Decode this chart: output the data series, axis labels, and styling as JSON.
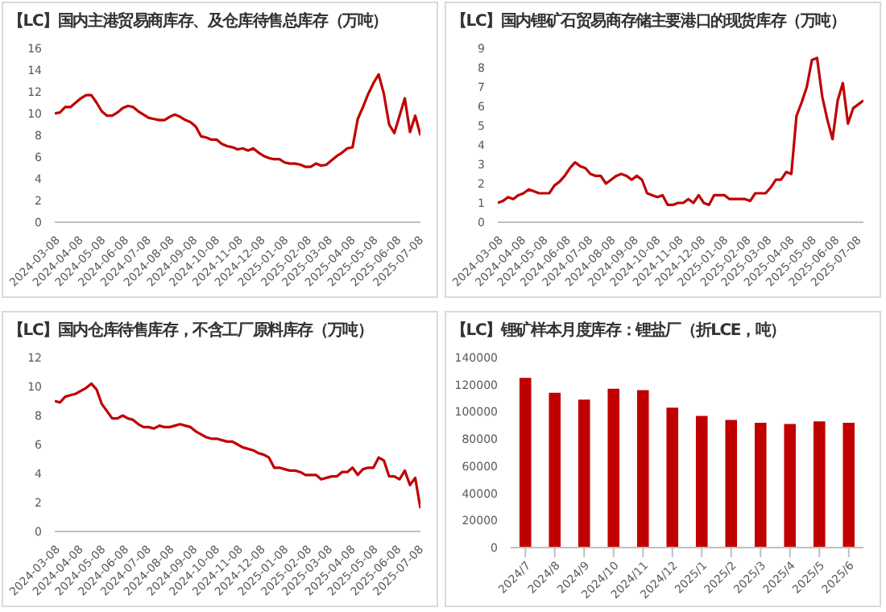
{
  "chart_data": [
    {
      "type": "line",
      "title": "【LC】国内主港贸易商库存、及仓库待售总库存（万吨）",
      "color": "#c00000",
      "x": [
        "2024-03-08",
        "2024-03-15",
        "2024-03-22",
        "2024-03-29",
        "2024-04-05",
        "2024-04-12",
        "2024-04-19",
        "2024-04-26",
        "2024-05-03",
        "2024-05-10",
        "2024-05-17",
        "2024-05-24",
        "2024-05-31",
        "2024-06-07",
        "2024-06-14",
        "2024-06-21",
        "2024-06-28",
        "2024-07-05",
        "2024-07-12",
        "2024-07-19",
        "2024-07-26",
        "2024-08-02",
        "2024-08-09",
        "2024-08-16",
        "2024-08-23",
        "2024-08-30",
        "2024-09-06",
        "2024-09-13",
        "2024-09-20",
        "2024-09-27",
        "2024-10-04",
        "2024-10-11",
        "2024-10-18",
        "2024-10-25",
        "2024-11-01",
        "2024-11-08",
        "2024-11-15",
        "2024-11-22",
        "2024-11-29",
        "2024-12-06",
        "2024-12-13",
        "2024-12-20",
        "2024-12-27",
        "2025-01-03",
        "2025-01-10",
        "2025-01-17",
        "2025-01-24",
        "2025-01-31",
        "2025-02-07",
        "2025-02-14",
        "2025-02-21",
        "2025-02-28",
        "2025-03-07",
        "2025-03-14",
        "2025-03-21",
        "2025-03-28",
        "2025-04-04",
        "2025-04-11",
        "2025-04-18",
        "2025-04-25",
        "2025-05-02",
        "2025-05-09",
        "2025-05-16",
        "2025-05-23",
        "2025-05-30",
        "2025-06-06",
        "2025-06-13",
        "2025-06-20",
        "2025-06-27",
        "2025-07-04",
        "2025-07-11"
      ],
      "values": [
        10.0,
        10.1,
        10.6,
        10.6,
        11.0,
        11.4,
        11.7,
        11.7,
        11.0,
        10.2,
        9.8,
        9.8,
        10.1,
        10.5,
        10.7,
        10.6,
        10.2,
        9.9,
        9.6,
        9.5,
        9.4,
        9.4,
        9.7,
        9.9,
        9.7,
        9.4,
        9.2,
        8.8,
        7.9,
        7.8,
        7.6,
        7.6,
        7.2,
        7.0,
        6.9,
        6.7,
        6.8,
        6.6,
        6.8,
        6.4,
        6.1,
        5.9,
        5.8,
        5.8,
        5.5,
        5.4,
        5.4,
        5.3,
        5.1,
        5.1,
        5.4,
        5.2,
        5.3,
        5.7,
        6.1,
        6.4,
        6.8,
        6.9,
        9.5,
        10.6,
        11.8,
        12.8,
        13.6,
        11.8,
        9.0,
        8.2,
        9.8,
        11.4,
        8.3,
        9.8,
        8.0
      ],
      "xlim": [
        "2024-03-08",
        "2025-07-11"
      ],
      "xticks": [
        "2024-03-08",
        "2024-04-08",
        "2024-05-08",
        "2024-06-08",
        "2024-07-08",
        "2024-08-08",
        "2024-09-08",
        "2024-10-08",
        "2024-11-08",
        "2024-12-08",
        "2025-01-08",
        "2025-02-08",
        "2025-03-08",
        "2025-04-08",
        "2025-05-08",
        "2025-06-08",
        "2025-07-08"
      ],
      "ylim": [
        0,
        16
      ],
      "yticks": [
        0,
        2,
        4,
        6,
        8,
        10,
        12,
        14,
        16
      ]
    },
    {
      "type": "line",
      "title": "【LC】国内锂矿石贸易商存储主要港口的现货库存（万吨）",
      "color": "#c00000",
      "x": [
        "2024-03-08",
        "2024-03-15",
        "2024-03-22",
        "2024-03-29",
        "2024-04-05",
        "2024-04-12",
        "2024-04-19",
        "2024-04-26",
        "2024-05-03",
        "2024-05-10",
        "2024-05-17",
        "2024-05-24",
        "2024-05-31",
        "2024-06-07",
        "2024-06-14",
        "2024-06-21",
        "2024-06-28",
        "2024-07-05",
        "2024-07-12",
        "2024-07-19",
        "2024-07-26",
        "2024-08-02",
        "2024-08-09",
        "2024-08-16",
        "2024-08-23",
        "2024-08-30",
        "2024-09-06",
        "2024-09-13",
        "2024-09-20",
        "2024-09-27",
        "2024-10-04",
        "2024-10-11",
        "2024-10-18",
        "2024-10-25",
        "2024-11-01",
        "2024-11-08",
        "2024-11-15",
        "2024-11-22",
        "2024-11-29",
        "2024-12-06",
        "2024-12-13",
        "2024-12-20",
        "2024-12-27",
        "2025-01-03",
        "2025-01-10",
        "2025-01-17",
        "2025-01-24",
        "2025-01-31",
        "2025-02-07",
        "2025-02-14",
        "2025-02-21",
        "2025-02-28",
        "2025-03-07",
        "2025-03-14",
        "2025-03-21",
        "2025-03-28",
        "2025-04-04",
        "2025-04-11",
        "2025-04-18",
        "2025-04-25",
        "2025-05-02",
        "2025-05-09",
        "2025-05-16",
        "2025-05-23",
        "2025-05-30",
        "2025-06-06",
        "2025-06-13",
        "2025-06-20",
        "2025-06-27",
        "2025-07-04",
        "2025-07-11",
        "2025-07-18"
      ],
      "values": [
        1.0,
        1.1,
        1.3,
        1.2,
        1.4,
        1.5,
        1.7,
        1.6,
        1.5,
        1.5,
        1.5,
        1.9,
        2.1,
        2.4,
        2.8,
        3.1,
        2.9,
        2.8,
        2.5,
        2.4,
        2.4,
        2.0,
        2.2,
        2.4,
        2.5,
        2.4,
        2.2,
        2.4,
        2.2,
        1.5,
        1.4,
        1.3,
        1.4,
        0.9,
        0.9,
        1.0,
        1.0,
        1.2,
        1.0,
        1.4,
        1.0,
        0.9,
        1.4,
        1.4,
        1.4,
        1.2,
        1.2,
        1.2,
        1.2,
        1.1,
        1.5,
        1.5,
        1.5,
        1.8,
        2.2,
        2.2,
        2.6,
        2.5,
        5.5,
        6.2,
        7.0,
        8.4,
        8.5,
        6.5,
        5.3,
        4.3,
        6.3,
        7.2,
        5.1,
        5.9,
        6.1,
        6.3
      ],
      "xlim": [
        "2024-03-08",
        "2025-07-18"
      ],
      "xticks": [
        "2024-03-08",
        "2024-04-08",
        "2024-05-08",
        "2024-06-08",
        "2024-07-08",
        "2024-08-08",
        "2024-09-08",
        "2024-10-08",
        "2024-11-08",
        "2024-12-08",
        "2025-01-08",
        "2025-02-08",
        "2025-03-08",
        "2025-04-08",
        "2025-05-08",
        "2025-06-08",
        "2025-07-08"
      ],
      "ylim": [
        0,
        9
      ],
      "yticks": [
        0,
        1,
        2,
        3,
        4,
        5,
        6,
        7,
        8,
        9
      ]
    },
    {
      "type": "line",
      "title": "【LC】国内仓库待售库存，不含工厂原料库存（万吨）",
      "color": "#c00000",
      "x": [
        "2024-03-08",
        "2024-03-15",
        "2024-03-22",
        "2024-03-29",
        "2024-04-05",
        "2024-04-12",
        "2024-04-19",
        "2024-04-26",
        "2024-05-03",
        "2024-05-10",
        "2024-05-17",
        "2024-05-24",
        "2024-05-31",
        "2024-06-07",
        "2024-06-14",
        "2024-06-21",
        "2024-06-28",
        "2024-07-05",
        "2024-07-12",
        "2024-07-19",
        "2024-07-26",
        "2024-08-02",
        "2024-08-09",
        "2024-08-16",
        "2024-08-23",
        "2024-08-30",
        "2024-09-06",
        "2024-09-13",
        "2024-09-20",
        "2024-09-27",
        "2024-10-04",
        "2024-10-11",
        "2024-10-18",
        "2024-10-25",
        "2024-11-01",
        "2024-11-08",
        "2024-11-15",
        "2024-11-22",
        "2024-11-29",
        "2024-12-06",
        "2024-12-13",
        "2024-12-20",
        "2024-12-27",
        "2025-01-03",
        "2025-01-10",
        "2025-01-17",
        "2025-01-24",
        "2025-01-31",
        "2025-02-07",
        "2025-02-14",
        "2025-02-21",
        "2025-02-28",
        "2025-03-07",
        "2025-03-14",
        "2025-03-21",
        "2025-03-28",
        "2025-04-04",
        "2025-04-11",
        "2025-04-18",
        "2025-04-25",
        "2025-05-02",
        "2025-05-09",
        "2025-05-16",
        "2025-05-23",
        "2025-05-30",
        "2025-06-06",
        "2025-06-13",
        "2025-06-20",
        "2025-06-27",
        "2025-07-04",
        "2025-07-11"
      ],
      "values": [
        9.0,
        8.9,
        9.3,
        9.4,
        9.5,
        9.7,
        9.9,
        10.2,
        9.8,
        8.8,
        8.3,
        7.8,
        7.8,
        8.0,
        7.8,
        7.7,
        7.4,
        7.2,
        7.2,
        7.1,
        7.3,
        7.2,
        7.2,
        7.3,
        7.4,
        7.3,
        7.2,
        6.9,
        6.7,
        6.5,
        6.4,
        6.4,
        6.3,
        6.2,
        6.2,
        6.0,
        5.8,
        5.7,
        5.6,
        5.4,
        5.3,
        5.1,
        4.4,
        4.4,
        4.3,
        4.2,
        4.2,
        4.1,
        3.9,
        3.9,
        3.9,
        3.6,
        3.7,
        3.8,
        3.8,
        4.1,
        4.1,
        4.4,
        3.9,
        4.3,
        4.4,
        4.4,
        5.1,
        4.9,
        3.8,
        3.8,
        3.6,
        4.2,
        3.2,
        3.7,
        1.6
      ],
      "xlim": [
        "2024-03-08",
        "2025-07-11"
      ],
      "xticks": [
        "2024-03-08",
        "2024-04-08",
        "2024-05-08",
        "2024-06-08",
        "2024-07-08",
        "2024-08-08",
        "2024-09-08",
        "2024-10-08",
        "2024-11-08",
        "2024-12-08",
        "2025-01-08",
        "2025-02-08",
        "2025-03-08",
        "2025-04-08",
        "2025-05-08",
        "2025-06-08",
        "2025-07-08"
      ],
      "ylim": [
        0,
        12
      ],
      "yticks": [
        0,
        2,
        4,
        6,
        8,
        10,
        12
      ]
    },
    {
      "type": "bar",
      "title": "【LC】锂矿样本月度库存：锂盐厂（折LCE，吨）",
      "color": "#c00000",
      "categories": [
        "2024/7",
        "2024/8",
        "2024/9",
        "2024/10",
        "2024/11",
        "2024/12",
        "2025/1",
        "2025/2",
        "2025/3",
        "2025/4",
        "2025/5",
        "2025/6"
      ],
      "values": [
        125000,
        114000,
        109000,
        117000,
        116000,
        103000,
        97000,
        94000,
        92000,
        91000,
        93000,
        92000
      ],
      "ylim": [
        0,
        140000
      ],
      "yticks": [
        0,
        20000,
        40000,
        60000,
        80000,
        100000,
        120000,
        140000
      ]
    }
  ]
}
